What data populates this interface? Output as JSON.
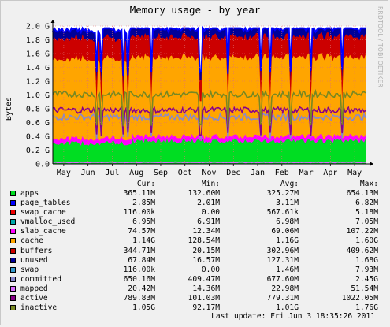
{
  "title": "Memory usage - by year",
  "side_label": "RRDTOOL / TOBI OETIKER",
  "chart_data": {
    "type": "area",
    "title": "Memory usage - by year",
    "ylabel": "Bytes",
    "ylim": [
      0,
      2.0
    ],
    "y_unit": "G",
    "y_ticks": [
      "0.0",
      "0.2 G",
      "0.4 G",
      "0.6 G",
      "0.8 G",
      "1.0 G",
      "1.2 G",
      "1.4 G",
      "1.6 G",
      "1.8 G",
      "2.0 G"
    ],
    "x_ticks": [
      "May",
      "Jun",
      "Jul",
      "Aug",
      "Sep",
      "Oct",
      "Nov",
      "Dec",
      "Jan",
      "Feb",
      "Mar",
      "Apr",
      "May"
    ],
    "grid": true,
    "stacked_series": [
      {
        "name": "apps",
        "color": "#00dd22",
        "value": 0.33
      },
      {
        "name": "page_tables",
        "color": "#0000ff",
        "value": 0.003
      },
      {
        "name": "swap_cache",
        "color": "#ee0000",
        "value": 0.0001
      },
      {
        "name": "vmalloc_used",
        "color": "#00aaaa",
        "value": 0.007
      },
      {
        "name": "slab_cache",
        "color": "#ff00ff",
        "value": 0.07
      },
      {
        "name": "cache",
        "color": "#ffa500",
        "value": 1.16
      },
      {
        "name": "buffers",
        "color": "#cc0000",
        "value": 0.3
      },
      {
        "name": "unused",
        "color": "#000099",
        "value": 0.13
      },
      {
        "name": "swap",
        "color": "#ffcc00",
        "value": 0.0
      }
    ],
    "line_series": [
      {
        "name": "committed",
        "color": "#8888cc",
        "value": 0.68
      },
      {
        "name": "mapped",
        "color": "#d96aff",
        "value": 0.023
      },
      {
        "name": "active",
        "color": "#880088",
        "value": 0.78
      },
      {
        "name": "inactive",
        "color": "#778822",
        "value": 1.01
      }
    ]
  },
  "legend": {
    "headers": {
      "cur": "Cur:",
      "min": "Min:",
      "avg": "Avg:",
      "max": "Max:"
    },
    "rows": [
      {
        "name": "apps",
        "color": "#00dd22",
        "cur": "365.11M",
        "min": "132.60M",
        "avg": "325.27M",
        "max": "654.13M"
      },
      {
        "name": "page_tables",
        "color": "#0000ff",
        "cur": "2.85M",
        "min": "2.01M",
        "avg": "3.11M",
        "max": "6.82M"
      },
      {
        "name": "swap_cache",
        "color": "#ee0000",
        "cur": "116.00k",
        "min": "0.00",
        "avg": "567.61k",
        "max": "5.18M"
      },
      {
        "name": "vmalloc_used",
        "color": "#00aaaa",
        "cur": "6.95M",
        "min": "6.91M",
        "avg": "6.98M",
        "max": "7.05M"
      },
      {
        "name": "slab_cache",
        "color": "#ff00ff",
        "cur": "74.57M",
        "min": "12.34M",
        "avg": "69.06M",
        "max": "107.22M"
      },
      {
        "name": "cache",
        "color": "#ffa500",
        "cur": "1.14G",
        "min": "128.54M",
        "avg": "1.16G",
        "max": "1.60G"
      },
      {
        "name": "buffers",
        "color": "#cc0000",
        "cur": "344.71M",
        "min": "20.15M",
        "avg": "302.96M",
        "max": "409.62M"
      },
      {
        "name": "unused",
        "color": "#000099",
        "cur": "67.84M",
        "min": "16.57M",
        "avg": "127.31M",
        "max": "1.68G"
      },
      {
        "name": "swap",
        "color": "#3399cc",
        "cur": "116.00k",
        "min": "0.00",
        "avg": "1.46M",
        "max": "7.93M"
      },
      {
        "name": "committed",
        "color": "#8888cc",
        "cur": "650.16M",
        "min": "409.47M",
        "avg": "677.60M",
        "max": "2.45G"
      },
      {
        "name": "mapped",
        "color": "#d96aff",
        "cur": "20.42M",
        "min": "14.36M",
        "avg": "22.98M",
        "max": "51.54M"
      },
      {
        "name": "active",
        "color": "#880088",
        "cur": "789.83M",
        "min": "101.03M",
        "avg": "779.31M",
        "max": "1022.05M"
      },
      {
        "name": "inactive",
        "color": "#778822",
        "cur": "1.05G",
        "min": "92.17M",
        "avg": "1.01G",
        "max": "1.76G"
      }
    ]
  },
  "last_update": "Last update: Fri Jun  3 18:35:26 2011"
}
